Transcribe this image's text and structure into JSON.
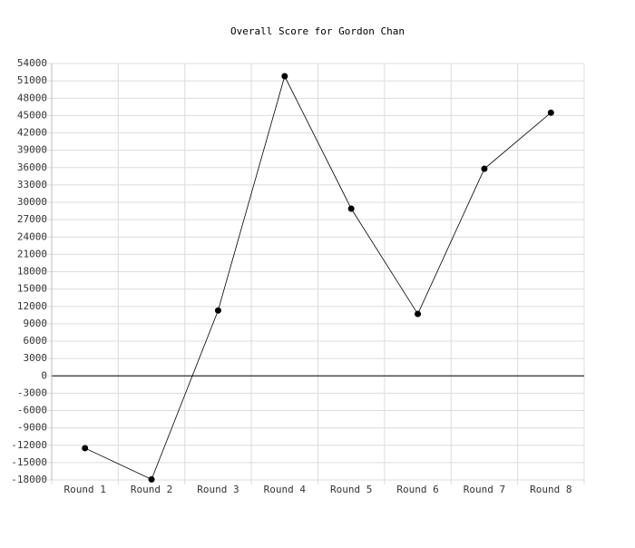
{
  "chart_data": {
    "type": "line",
    "title": "Overall Score for Gordon Chan",
    "categories": [
      "Round 1",
      "Round 2",
      "Round 3",
      "Round 4",
      "Round 5",
      "Round 6",
      "Round 7",
      "Round 8"
    ],
    "series": [
      {
        "name": "Overall Score",
        "color": "#000000",
        "values": [
          -12500,
          -17900,
          11300,
          51800,
          28900,
          10700,
          35800,
          45500
        ]
      }
    ],
    "ylim": [
      -18000,
      54000
    ],
    "yticks": [
      -18000,
      -15000,
      -12000,
      -9000,
      -6000,
      -3000,
      0,
      3000,
      6000,
      9000,
      12000,
      15000,
      18000,
      21000,
      24000,
      27000,
      30000,
      33000,
      36000,
      39000,
      42000,
      45000,
      48000,
      51000,
      54000
    ],
    "grid": true
  }
}
